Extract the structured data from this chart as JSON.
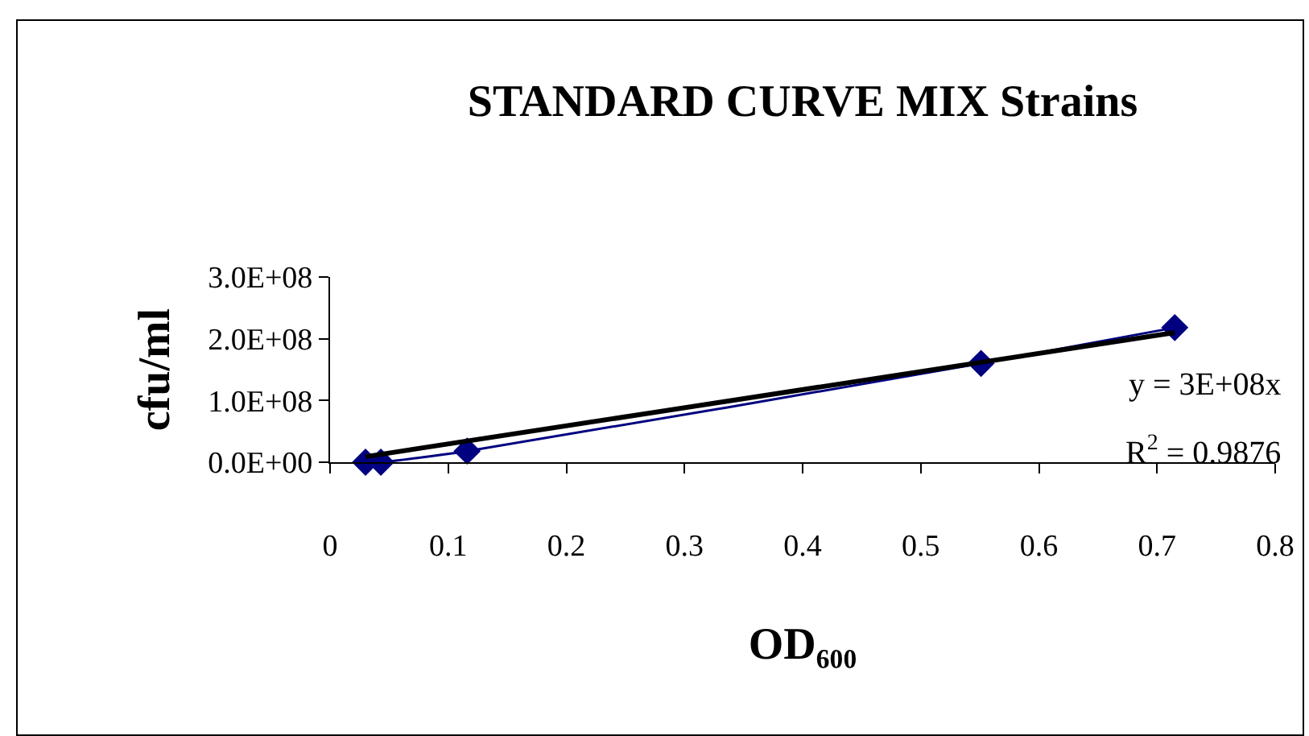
{
  "chart_data": {
    "type": "scatter",
    "title": "STANDARD CURVE MIX Strains",
    "xlabel": "OD₆₀₀",
    "ylabel": "cfu/ml",
    "x": [
      0.03,
      0.043,
      0.116,
      0.551,
      0.715
    ],
    "series": [
      {
        "type": "line",
        "color": "#000080",
        "values": [
          0,
          0,
          18000000,
          160000000,
          218000000
        ],
        "marker": "diamond",
        "line_style": "solid"
      },
      {
        "type": "line",
        "color": "#000000",
        "x": [
          0.03,
          0.715
        ],
        "values": [
          9000000,
          210000000
        ],
        "marker": "none",
        "line_style": "solid"
      }
    ],
    "xlim": [
      0,
      0.8
    ],
    "xticks": [
      0,
      0.1,
      0.2,
      0.3,
      0.4,
      0.5,
      0.6,
      0.7,
      0.8
    ],
    "ylim": [
      0,
      300000000
    ],
    "yticks": [
      {
        "value": 0,
        "label": "0.0E+00"
      },
      {
        "value": 100000000,
        "label": "1.0E+08"
      },
      {
        "value": 200000000,
        "label": "2.0E+08"
      },
      {
        "value": 300000000,
        "label": "3.0E+08"
      }
    ],
    "annotations": [
      "y = 3E+08x",
      "R$^{2}$ = 0.9876"
    ],
    "grid": false,
    "legend": false
  }
}
